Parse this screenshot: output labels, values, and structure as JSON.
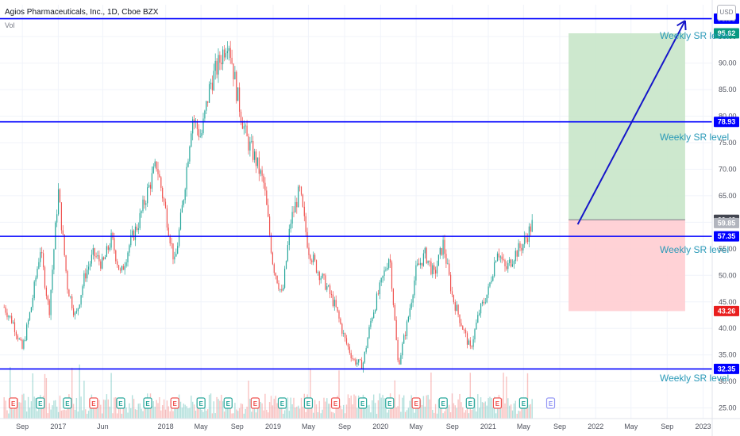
{
  "header": {
    "title": "Agios Pharmaceuticals, Inc., 1D, Cboe BZX",
    "volume_label": "Vol",
    "currency": "USD"
  },
  "annotations": {
    "sr_label": "Weekly SR level"
  },
  "colors": {
    "up": "#26a69a",
    "down": "#ef5350",
    "sr_line": "#0000ff",
    "target_zone": "#c8e6c9",
    "stop_zone": "#ffcdd2",
    "sr_text": "#2a9ab8"
  },
  "chart_data": {
    "type": "candlestick",
    "symbol": "Agios Pharmaceuticals, Inc.",
    "interval": "1D",
    "exchange": "Cboe BZX",
    "y_axis": {
      "scale": "linear",
      "range": [
        23,
        101
      ],
      "ticks": [
        25,
        30,
        35,
        40,
        45,
        50,
        55,
        60,
        65,
        70,
        75,
        80,
        85,
        90,
        95
      ],
      "labels": [
        "25.00",
        "30.00",
        "35.00",
        "40.00",
        "45.00",
        "50.00",
        "55.00",
        "60.00",
        "65.00",
        "70.00",
        "75.00",
        "80.00",
        "85.00",
        "90.00",
        "95.00"
      ],
      "position": "right"
    },
    "x_axis": {
      "labels": [
        "Sep",
        "2017",
        "Jun",
        "2018",
        "May",
        "Sep",
        "2019",
        "May",
        "Sep",
        "2020",
        "May",
        "Sep",
        "2021",
        "May",
        "Sep",
        "2022",
        "May",
        "Sep",
        "2023"
      ]
    },
    "price_path": [
      [
        "2016-07",
        44
      ],
      [
        "2016-08",
        41
      ],
      [
        "2016-09",
        36
      ],
      [
        "2016-10",
        44
      ],
      [
        "2016-11",
        55
      ],
      [
        "2016-12",
        43
      ],
      [
        "2017-01",
        66
      ],
      [
        "2017-02",
        48
      ],
      [
        "2017-03",
        42
      ],
      [
        "2017-04",
        50
      ],
      [
        "2017-05",
        54
      ],
      [
        "2017-06",
        52
      ],
      [
        "2017-07",
        57
      ],
      [
        "2017-08",
        50
      ],
      [
        "2017-09",
        56
      ],
      [
        "2017-10",
        60
      ],
      [
        "2017-11",
        66
      ],
      [
        "2017-12",
        71
      ],
      [
        "2018-01",
        62
      ],
      [
        "2018-02",
        52
      ],
      [
        "2018-03",
        64
      ],
      [
        "2018-04",
        80
      ],
      [
        "2018-05",
        76
      ],
      [
        "2018-06",
        86
      ],
      [
        "2018-07",
        90
      ],
      [
        "2018-08",
        95
      ],
      [
        "2018-09",
        84
      ],
      [
        "2018-10",
        76
      ],
      [
        "2018-11",
        72
      ],
      [
        "2018-12",
        67
      ],
      [
        "2019-01",
        52
      ],
      [
        "2019-02",
        46
      ],
      [
        "2019-03",
        60
      ],
      [
        "2019-04",
        66
      ],
      [
        "2019-05",
        55
      ],
      [
        "2019-06",
        51
      ],
      [
        "2019-07",
        48
      ],
      [
        "2019-08",
        44
      ],
      [
        "2019-09",
        38
      ],
      [
        "2019-10",
        34
      ],
      [
        "2019-11",
        33
      ],
      [
        "2019-12",
        42
      ],
      [
        "2020-01",
        48
      ],
      [
        "2020-02",
        54
      ],
      [
        "2020-03",
        33
      ],
      [
        "2020-04",
        41
      ],
      [
        "2020-05",
        51
      ],
      [
        "2020-06",
        54
      ],
      [
        "2020-07",
        50
      ],
      [
        "2020-08",
        56
      ],
      [
        "2020-09",
        46
      ],
      [
        "2020-10",
        41
      ],
      [
        "2020-11",
        36
      ],
      [
        "2020-12",
        43
      ],
      [
        "2021-01",
        47
      ],
      [
        "2021-02",
        55
      ],
      [
        "2021-03",
        51
      ],
      [
        "2021-04",
        54
      ],
      [
        "2021-05",
        56
      ],
      [
        "2021-06",
        59.85
      ]
    ],
    "sr_levels": [
      98.38,
      78.93,
      57.35,
      32.35
    ],
    "price_tags": [
      {
        "value": "98.38",
        "color": "#0000ff"
      },
      {
        "value": "95.62",
        "color": "#089981"
      },
      {
        "value": "78.93",
        "color": "#0000ff"
      },
      {
        "value": "60.46",
        "color": "#434651"
      },
      {
        "value": "59.85",
        "color": "#b2b5be"
      },
      {
        "value": "57.35",
        "color": "#0000ff"
      },
      {
        "value": "43.26",
        "color": "#e91e1e"
      },
      {
        "value": "32.35",
        "color": "#0000ff"
      }
    ],
    "long_position": {
      "entry": 60.46,
      "target": 95.62,
      "stop": 43.26,
      "start": "2021-10",
      "end": "2022-11"
    },
    "projection_arrow": {
      "from": [
        "2021-11",
        59.6
      ],
      "to": [
        "2022-11",
        98.0
      ]
    },
    "earnings_marker_label": "E"
  }
}
